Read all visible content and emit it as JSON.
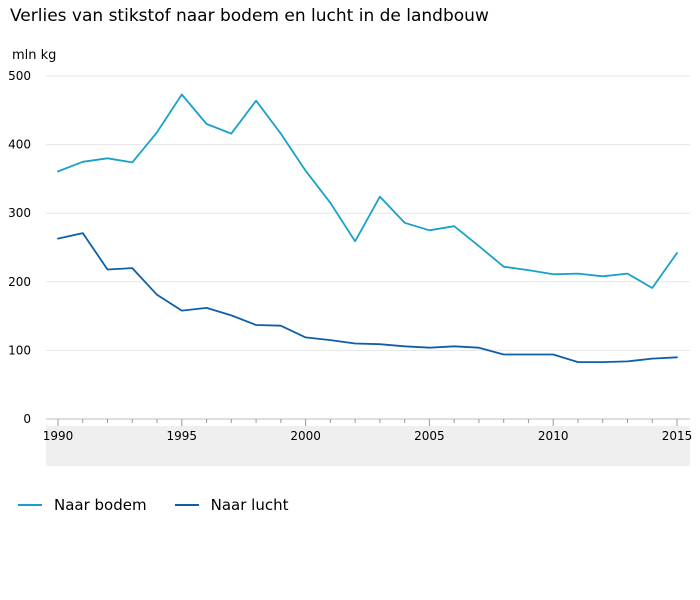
{
  "chart_data": {
    "type": "line",
    "title": "Verlies van stikstof naar bodem en lucht in de landbouw",
    "ylabel": "mln kg",
    "xlabel": "",
    "ylim": [
      0,
      500
    ],
    "xlim": [
      1990,
      2015
    ],
    "yticks": [
      "0",
      "100",
      "200",
      "300",
      "400",
      "500"
    ],
    "xticks": [
      "1990",
      "1995",
      "2000",
      "2005",
      "2010",
      "2015"
    ],
    "grid": true,
    "legend_position": "bottom-left",
    "x": [
      1990,
      1991,
      1992,
      1993,
      1994,
      1995,
      1996,
      1997,
      1998,
      1999,
      2000,
      2001,
      2002,
      2003,
      2004,
      2005,
      2006,
      2007,
      2008,
      2009,
      2010,
      2011,
      2012,
      2013,
      2014,
      2015
    ],
    "series": [
      {
        "name": "Naar bodem",
        "color": "#19a1c9",
        "values": [
          361,
          375,
          380,
          374,
          418,
          473,
          430,
          416,
          464,
          416,
          362,
          315,
          259,
          324,
          286,
          275,
          281,
          252,
          222,
          217,
          211,
          212,
          208,
          212,
          191,
          242
        ]
      },
      {
        "name": "Naar lucht",
        "color": "#0f5fa8",
        "values": [
          263,
          271,
          218,
          220,
          181,
          158,
          162,
          151,
          137,
          136,
          119,
          115,
          110,
          109,
          106,
          104,
          106,
          104,
          94,
          94,
          94,
          83,
          83,
          84,
          88,
          90
        ]
      }
    ]
  }
}
